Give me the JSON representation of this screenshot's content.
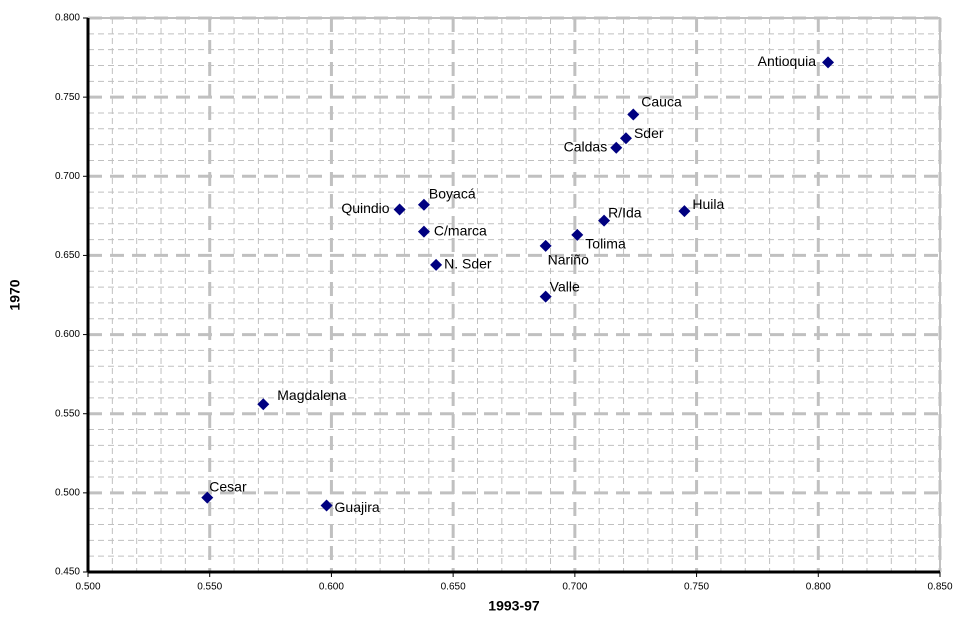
{
  "chart_data": {
    "type": "scatter",
    "x_label": "1993-97",
    "y_label": "1970",
    "color": "#000080",
    "grid": true,
    "labels": [
      "Antioquia",
      "Cauca",
      "Sder",
      "Caldas",
      "R/Ida",
      "Huila",
      "Tolima",
      "Nariño",
      "Valle",
      "Boyacá",
      "Quindio",
      "C/marca",
      "N. Sder",
      "Magdalena",
      "Cesar",
      "Guajira"
    ],
    "x": [
      0.804,
      0.724,
      0.721,
      0.717,
      0.712,
      0.745,
      0.701,
      0.688,
      0.688,
      0.638,
      0.628,
      0.638,
      0.643,
      0.572,
      0.549,
      0.598
    ],
    "y": [
      0.772,
      0.739,
      0.724,
      0.718,
      0.672,
      0.678,
      0.663,
      0.656,
      0.624,
      0.682,
      0.679,
      0.665,
      0.644,
      0.556,
      0.497,
      0.492
    ],
    "xlim": [
      0.5,
      0.85
    ],
    "ylim": [
      0.45,
      0.8
    ],
    "xticks": [
      {
        "value": 0.5,
        "label": "0.500"
      },
      {
        "value": 0.55,
        "label": "0.550"
      },
      {
        "value": 0.6,
        "label": "0.600"
      },
      {
        "value": 0.65,
        "label": "0.650"
      },
      {
        "value": 0.7,
        "label": "0.700"
      },
      {
        "value": 0.75,
        "label": "0.750"
      },
      {
        "value": 0.8,
        "label": "0.800"
      },
      {
        "value": 0.85,
        "label": "0.850"
      }
    ],
    "yticks": [
      {
        "value": 0.45,
        "label": "0.450"
      },
      {
        "value": 0.5,
        "label": "0.500"
      },
      {
        "value": 0.55,
        "label": "0.550"
      },
      {
        "value": 0.6,
        "label": "0.600"
      },
      {
        "value": 0.65,
        "label": "0.650"
      },
      {
        "value": 0.7,
        "label": "0.700"
      },
      {
        "value": 0.75,
        "label": "0.750"
      },
      {
        "value": 0.8,
        "label": "0.800"
      }
    ]
  }
}
